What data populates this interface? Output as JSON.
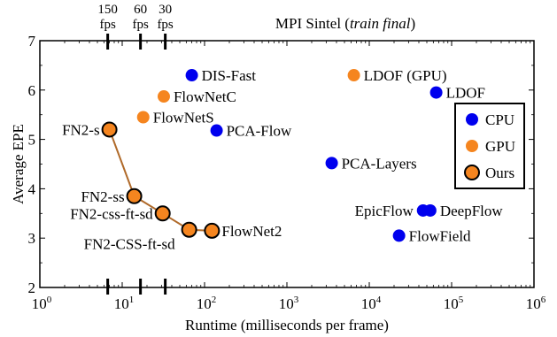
{
  "chart_data": {
    "type": "scatter",
    "title_main": "MPI Sintel (",
    "title_italic": "train final",
    "title_close": ")",
    "xlabel": "Runtime (milliseconds per frame)",
    "ylabel": "Average EPE",
    "x_scale": "log",
    "xlim": [
      1,
      1000000
    ],
    "ylim": [
      2,
      7
    ],
    "x_tick_exponents": [
      "0",
      "1",
      "2",
      "3",
      "4",
      "5",
      "6"
    ],
    "x_tick_base": "10",
    "y_ticks": [
      "2",
      "3",
      "4",
      "5",
      "6",
      "7"
    ],
    "grid": false,
    "colors": {
      "cpu": "#0000ee",
      "gpu": "#f5851f",
      "ours": "#f5851f",
      "ours_edge": "#000000",
      "ours_line": "#b06a2a"
    },
    "fps_markers": [
      {
        "fps": "150",
        "unit": "fps",
        "runtime_ms": 6.67
      },
      {
        "fps": "60",
        "unit": "fps",
        "runtime_ms": 16.67
      },
      {
        "fps": "30",
        "unit": "fps",
        "runtime_ms": 33.33
      }
    ],
    "legend": {
      "position": "right",
      "entries": [
        {
          "label": "CPU",
          "kind": "cpu"
        },
        {
          "label": "GPU",
          "kind": "gpu"
        },
        {
          "label": "Ours",
          "kind": "ours"
        }
      ]
    },
    "points": [
      {
        "label": "DIS-Fast",
        "kind": "cpu",
        "x": 70,
        "y": 6.3,
        "label_side": "right"
      },
      {
        "label": "LDOF (GPU)",
        "kind": "gpu",
        "x": 6500,
        "y": 6.3,
        "label_side": "right"
      },
      {
        "label": "LDOF",
        "kind": "cpu",
        "x": 65000,
        "y": 5.95,
        "label_side": "right"
      },
      {
        "label": "FlowNetC",
        "kind": "gpu",
        "x": 32,
        "y": 5.87,
        "label_side": "right"
      },
      {
        "label": "FlowNetS",
        "kind": "gpu",
        "x": 18,
        "y": 5.45,
        "label_side": "right"
      },
      {
        "label": "PCA-Flow",
        "kind": "cpu",
        "x": 140,
        "y": 5.18,
        "label_side": "right"
      },
      {
        "label": "PCA-Layers",
        "kind": "cpu",
        "x": 3500,
        "y": 4.52,
        "label_side": "right"
      },
      {
        "label": "EpicFlow",
        "kind": "cpu",
        "x": 45000,
        "y": 3.56,
        "label_side": "left"
      },
      {
        "label": "DeepFlow",
        "kind": "cpu",
        "x": 55000,
        "y": 3.56,
        "label_side": "right"
      },
      {
        "label": "FlowField",
        "kind": "cpu",
        "x": 23000,
        "y": 3.05,
        "label_side": "right"
      },
      {
        "label": "FN2-s",
        "kind": "ours",
        "x": 7,
        "y": 5.2,
        "label_side": "left"
      },
      {
        "label": "FN2-ss",
        "kind": "ours",
        "x": 14,
        "y": 3.85,
        "label_side": "left"
      },
      {
        "label": "FN2-css-ft-sd",
        "kind": "ours",
        "x": 31,
        "y": 3.5,
        "label_side": "left"
      },
      {
        "label": "FN2-CSS-ft-sd",
        "kind": "ours",
        "x": 65,
        "y": 3.17,
        "label_side": "below-left"
      },
      {
        "label": "FlowNet2",
        "kind": "ours",
        "x": 123,
        "y": 3.15,
        "label_side": "right"
      }
    ]
  }
}
